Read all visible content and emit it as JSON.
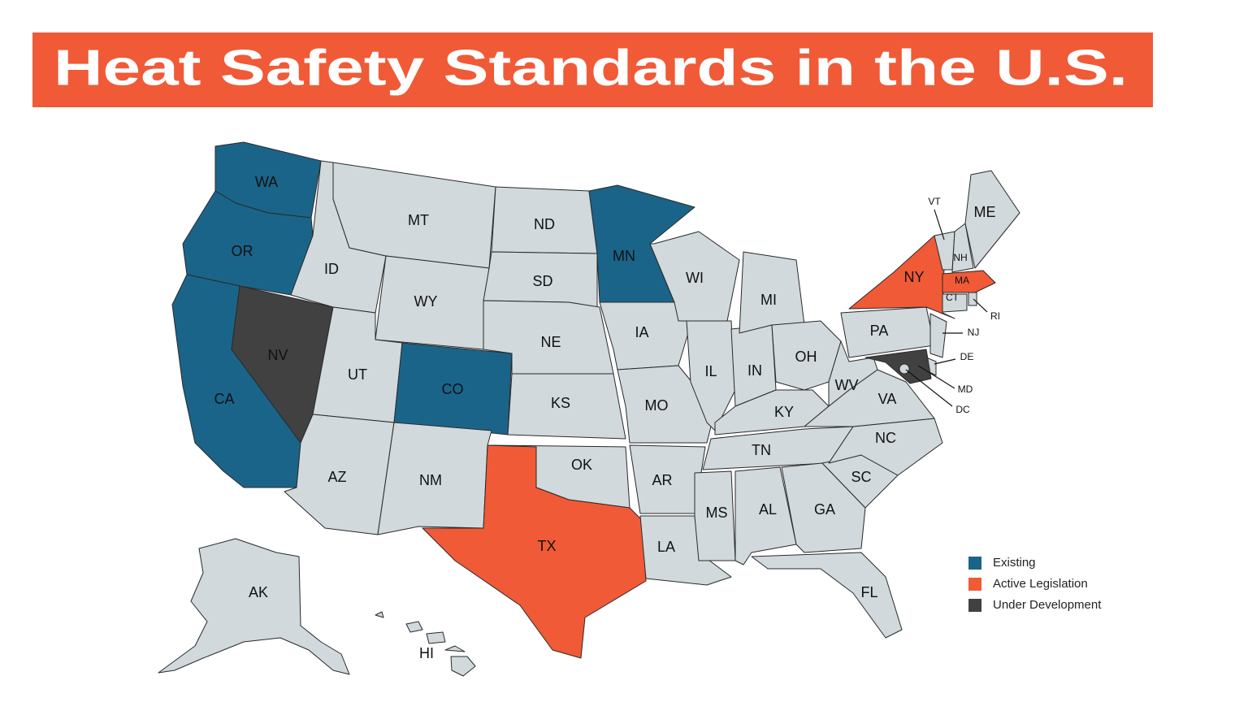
{
  "title": "Heat Safety Standards in the U.S.",
  "legend": [
    {
      "label": "Existing",
      "color": "#1b6489"
    },
    {
      "label": "Active Legislation",
      "color": "#f05a37"
    },
    {
      "label": "Under Development",
      "color": "#414141"
    }
  ],
  "states": [
    {
      "label": "WA",
      "status": 0
    },
    {
      "label": "OR",
      "status": 0
    },
    {
      "label": "CA",
      "status": 0
    },
    {
      "label": "NV",
      "status": 2
    },
    {
      "label": "ID",
      "status": null
    },
    {
      "label": "MT",
      "status": null
    },
    {
      "label": "WY",
      "status": null
    },
    {
      "label": "UT",
      "status": null
    },
    {
      "label": "CO",
      "status": 0
    },
    {
      "label": "AZ",
      "status": null
    },
    {
      "label": "NM",
      "status": null
    },
    {
      "label": "ND",
      "status": null
    },
    {
      "label": "SD",
      "status": null
    },
    {
      "label": "NE",
      "status": null
    },
    {
      "label": "KS",
      "status": null
    },
    {
      "label": "OK",
      "status": null
    },
    {
      "label": "TX",
      "status": 1
    },
    {
      "label": "MN",
      "status": 0
    },
    {
      "label": "IA",
      "status": null
    },
    {
      "label": "MO",
      "status": null
    },
    {
      "label": "AR",
      "status": null
    },
    {
      "label": "LA",
      "status": null
    },
    {
      "label": "WI",
      "status": null
    },
    {
      "label": "IL",
      "status": null
    },
    {
      "label": "IN",
      "status": null
    },
    {
      "label": "MI",
      "status": null
    },
    {
      "label": "OH",
      "status": null
    },
    {
      "label": "KY",
      "status": null
    },
    {
      "label": "TN",
      "status": null
    },
    {
      "label": "MS",
      "status": null
    },
    {
      "label": "AL",
      "status": null
    },
    {
      "label": "GA",
      "status": null
    },
    {
      "label": "FL",
      "status": null
    },
    {
      "label": "SC",
      "status": null
    },
    {
      "label": "NC",
      "status": null
    },
    {
      "label": "VA",
      "status": null
    },
    {
      "label": "WV",
      "status": null
    },
    {
      "label": "PA",
      "status": null
    },
    {
      "label": "NY",
      "status": 1
    },
    {
      "label": "VT",
      "status": null
    },
    {
      "label": "NH",
      "status": null
    },
    {
      "label": "ME",
      "status": null
    },
    {
      "label": "MA",
      "status": 1
    },
    {
      "label": "CT",
      "status": null
    },
    {
      "label": "RI",
      "status": null
    },
    {
      "label": "NJ",
      "status": null
    },
    {
      "label": "DE",
      "status": null
    },
    {
      "label": "MD",
      "status": 2
    },
    {
      "label": "DC",
      "status": null
    },
    {
      "label": "AK",
      "status": null
    },
    {
      "label": "HI",
      "status": null
    }
  ]
}
